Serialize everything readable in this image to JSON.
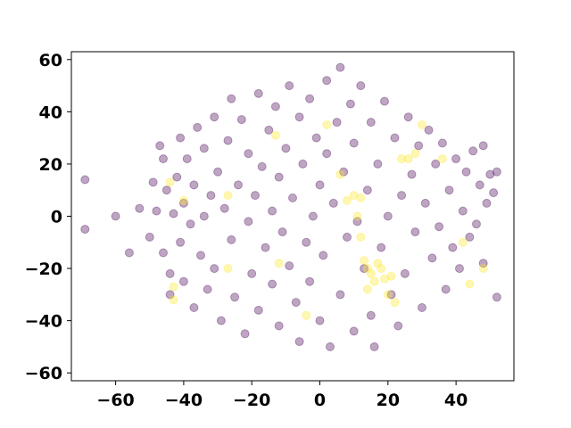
{
  "chart_data": {
    "type": "scatter",
    "title": "",
    "xlabel": "",
    "ylabel": "",
    "xlim": [
      -73,
      57
    ],
    "ylim": [
      -63,
      63
    ],
    "grid": false,
    "x_ticks": [
      -60,
      -40,
      -20,
      0,
      20,
      40
    ],
    "x_tick_labels": [
      "−60",
      "−40",
      "−20",
      "0",
      "20",
      "40"
    ],
    "y_ticks": [
      -60,
      -40,
      -20,
      0,
      20,
      40,
      60
    ],
    "y_tick_labels": [
      "−60",
      "−40",
      "−20",
      "0",
      "20",
      "40",
      "60"
    ],
    "marker_alpha": 0.35,
    "series": [
      {
        "color": "#440154",
        "description": "main cluster (purple points)",
        "values": [
          [
            -69,
            14
          ],
          [
            -69,
            -5
          ],
          [
            -56,
            -14
          ],
          [
            -53,
            3
          ],
          [
            -50,
            -8
          ],
          [
            -49,
            13
          ],
          [
            -48,
            2
          ],
          [
            -47,
            27
          ],
          [
            -46,
            22
          ],
          [
            -46,
            -14
          ],
          [
            -45,
            10
          ],
          [
            -44,
            -22
          ],
          [
            -43,
            1
          ],
          [
            -42,
            15
          ],
          [
            -41,
            30
          ],
          [
            -41,
            -10
          ],
          [
            -40,
            5
          ],
          [
            -40,
            -25
          ],
          [
            -39,
            22
          ],
          [
            -38,
            -3
          ],
          [
            -37,
            12
          ],
          [
            -37,
            -35
          ],
          [
            -36,
            34
          ],
          [
            -35,
            -15
          ],
          [
            -34,
            0
          ],
          [
            -34,
            26
          ],
          [
            -33,
            -28
          ],
          [
            -32,
            8
          ],
          [
            -31,
            38
          ],
          [
            -31,
            -20
          ],
          [
            -30,
            17
          ],
          [
            -29,
            -40
          ],
          [
            -28,
            3
          ],
          [
            -27,
            29
          ],
          [
            -26,
            -9
          ],
          [
            -26,
            45
          ],
          [
            -25,
            -31
          ],
          [
            -24,
            12
          ],
          [
            -23,
            37
          ],
          [
            -22,
            -45
          ],
          [
            -21,
            -2
          ],
          [
            -21,
            24
          ],
          [
            -20,
            -22
          ],
          [
            -19,
            8
          ],
          [
            -18,
            47
          ],
          [
            -18,
            -36
          ],
          [
            -17,
            19
          ],
          [
            -16,
            -12
          ],
          [
            -15,
            33
          ],
          [
            -14,
            -26
          ],
          [
            -14,
            2
          ],
          [
            -13,
            42
          ],
          [
            -12,
            -42
          ],
          [
            -12,
            15
          ],
          [
            -11,
            -6
          ],
          [
            -10,
            26
          ],
          [
            -9,
            -19
          ],
          [
            -9,
            50
          ],
          [
            -8,
            7
          ],
          [
            -7,
            -33
          ],
          [
            -6,
            38
          ],
          [
            -6,
            -48
          ],
          [
            -5,
            20
          ],
          [
            -4,
            -10
          ],
          [
            -3,
            45
          ],
          [
            -3,
            -25
          ],
          [
            -2,
            0
          ],
          [
            -1,
            30
          ],
          [
            0,
            -40
          ],
          [
            0,
            12
          ],
          [
            1,
            -15
          ],
          [
            2,
            52
          ],
          [
            2,
            24
          ],
          [
            3,
            -50
          ],
          [
            4,
            5
          ],
          [
            5,
            36
          ],
          [
            6,
            -30
          ],
          [
            6,
            57
          ],
          [
            7,
            17
          ],
          [
            8,
            -8
          ],
          [
            9,
            43
          ],
          [
            10,
            -44
          ],
          [
            10,
            28
          ],
          [
            11,
            -2
          ],
          [
            12,
            50
          ],
          [
            13,
            -20
          ],
          [
            14,
            10
          ],
          [
            15,
            36
          ],
          [
            15,
            -38
          ],
          [
            16,
            -50
          ],
          [
            17,
            20
          ],
          [
            18,
            -12
          ],
          [
            19,
            44
          ],
          [
            20,
            0
          ],
          [
            21,
            -30
          ],
          [
            22,
            30
          ],
          [
            23,
            -42
          ],
          [
            24,
            8
          ],
          [
            25,
            -22
          ],
          [
            26,
            38
          ],
          [
            27,
            16
          ],
          [
            28,
            -6
          ],
          [
            29,
            27
          ],
          [
            30,
            -35
          ],
          [
            31,
            5
          ],
          [
            32,
            33
          ],
          [
            33,
            -16
          ],
          [
            34,
            20
          ],
          [
            35,
            -4
          ],
          [
            36,
            28
          ],
          [
            37,
            -28
          ],
          [
            38,
            10
          ],
          [
            39,
            -12
          ],
          [
            40,
            22
          ],
          [
            41,
            -20
          ],
          [
            42,
            2
          ],
          [
            43,
            17
          ],
          [
            44,
            -8
          ],
          [
            45,
            25
          ],
          [
            46,
            -3
          ],
          [
            47,
            12
          ],
          [
            48,
            27
          ],
          [
            48,
            -18
          ],
          [
            49,
            5
          ],
          [
            50,
            16
          ],
          [
            51,
            9
          ],
          [
            52,
            17
          ],
          [
            52,
            -31
          ],
          [
            -60,
            0
          ],
          [
            -44,
            -30
          ]
        ]
      },
      {
        "color": "#fde725",
        "description": "minority points (yellow)",
        "values": [
          [
            -44,
            13
          ],
          [
            -43,
            -27
          ],
          [
            -43,
            -32
          ],
          [
            -40,
            6
          ],
          [
            -27,
            -20
          ],
          [
            -27,
            8
          ],
          [
            -13,
            31
          ],
          [
            -12,
            -18
          ],
          [
            -4,
            -38
          ],
          [
            2,
            35
          ],
          [
            10,
            8
          ],
          [
            11,
            0
          ],
          [
            12,
            7
          ],
          [
            12,
            -8
          ],
          [
            13,
            -17
          ],
          [
            14,
            -20
          ],
          [
            15,
            -22
          ],
          [
            16,
            -25
          ],
          [
            17,
            -18
          ],
          [
            18,
            -20
          ],
          [
            19,
            -24
          ],
          [
            20,
            -30
          ],
          [
            21,
            -23
          ],
          [
            22,
            -33
          ],
          [
            24,
            22
          ],
          [
            26,
            22
          ],
          [
            28,
            24
          ],
          [
            30,
            35
          ],
          [
            36,
            22
          ],
          [
            42,
            -10
          ],
          [
            44,
            -26
          ],
          [
            48,
            -20
          ],
          [
            14,
            -28
          ],
          [
            8,
            6
          ],
          [
            6,
            16
          ]
        ]
      }
    ]
  }
}
